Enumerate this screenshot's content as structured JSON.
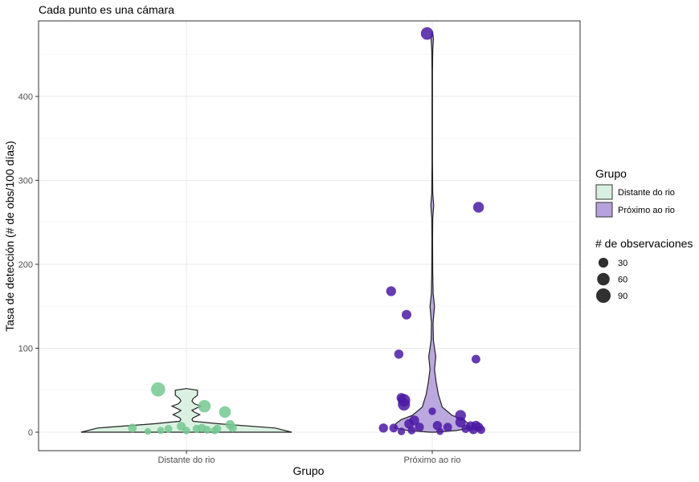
{
  "chart_data": {
    "type": "scatter",
    "title": "Cada punto es una cámara",
    "xlabel": "Grupo",
    "ylabel": "Tasa de detección (# de obs/100 días)",
    "categories": [
      "Distante do rio",
      "Próximo ao rio"
    ],
    "ylim": [
      -22,
      490
    ],
    "yticks": [
      0,
      100,
      200,
      300,
      400
    ],
    "grid": true,
    "legend_position": "right",
    "colors": {
      "Distante do rio": {
        "point": "#74c892",
        "fill": "#d8f0df"
      },
      "Próximo ao rio": {
        "point": "#4b1aa3",
        "fill": "#b7a3dc"
      }
    },
    "legend": {
      "fill_title": "Grupo",
      "fill_items": [
        "Distante do rio",
        "Próximo ao rio"
      ],
      "size_title": "# de observaciones",
      "size_items": [
        30,
        60,
        90
      ]
    },
    "violins": [
      {
        "group": "Distante do rio",
        "profile": [
          [
            0,
            0.95
          ],
          [
            5,
            0.8
          ],
          [
            10,
            0.3
          ],
          [
            13,
            0.06
          ],
          [
            15,
            0.05
          ],
          [
            17,
            0.06
          ],
          [
            21,
            0.12
          ],
          [
            24,
            0.07
          ],
          [
            26,
            0.05
          ],
          [
            28,
            0.08
          ],
          [
            31,
            0.13
          ],
          [
            34,
            0.07
          ],
          [
            37,
            0.05
          ],
          [
            40,
            0.06
          ],
          [
            44,
            0.1
          ],
          [
            47,
            0.1
          ],
          [
            50,
            0.1
          ],
          [
            52,
            0
          ]
        ]
      },
      {
        "group": "Próximo ao rio",
        "profile": [
          [
            0,
            0.02
          ],
          [
            2,
            0.22
          ],
          [
            5,
            0.34
          ],
          [
            10,
            0.33
          ],
          [
            15,
            0.28
          ],
          [
            20,
            0.18
          ],
          [
            30,
            0.09
          ],
          [
            45,
            0.055
          ],
          [
            60,
            0.035
          ],
          [
            75,
            0.02
          ],
          [
            90,
            0.032
          ],
          [
            100,
            0.02
          ],
          [
            110,
            0.01
          ],
          [
            130,
            0.007
          ],
          [
            150,
            0.02
          ],
          [
            165,
            0.008
          ],
          [
            190,
            0.004
          ],
          [
            230,
            0.003
          ],
          [
            255,
            0.004
          ],
          [
            270,
            0.013
          ],
          [
            285,
            0.004
          ],
          [
            320,
            0.002
          ],
          [
            380,
            0.002
          ],
          [
            430,
            0.002
          ],
          [
            455,
            0.004
          ],
          [
            468,
            0.01
          ],
          [
            473,
            0.007
          ],
          [
            476,
            0
          ]
        ]
      }
    ],
    "points": [
      {
        "group": "Distante do rio",
        "jitter": -0.21,
        "y": 5,
        "n": 20
      },
      {
        "group": "Distante do rio",
        "jitter": -0.15,
        "y": 1,
        "n": 8
      },
      {
        "group": "Distante do rio",
        "jitter": -0.11,
        "y": 51,
        "n": 85
      },
      {
        "group": "Distante do rio",
        "jitter": -0.1,
        "y": 2,
        "n": 10
      },
      {
        "group": "Distante do rio",
        "jitter": -0.07,
        "y": 4,
        "n": 14
      },
      {
        "group": "Distante do rio",
        "jitter": -0.02,
        "y": 7,
        "n": 22
      },
      {
        "group": "Distante do rio",
        "jitter": 0.0,
        "y": 2,
        "n": 12
      },
      {
        "group": "Distante do rio",
        "jitter": 0.04,
        "y": 4,
        "n": 16
      },
      {
        "group": "Distante do rio",
        "jitter": 0.06,
        "y": 5,
        "n": 18
      },
      {
        "group": "Distante do rio",
        "jitter": 0.07,
        "y": 31,
        "n": 60
      },
      {
        "group": "Distante do rio",
        "jitter": 0.08,
        "y": 3,
        "n": 14
      },
      {
        "group": "Distante do rio",
        "jitter": 0.11,
        "y": 2,
        "n": 12
      },
      {
        "group": "Distante do rio",
        "jitter": 0.12,
        "y": 4,
        "n": 16
      },
      {
        "group": "Distante do rio",
        "jitter": 0.15,
        "y": 24,
        "n": 50
      },
      {
        "group": "Distante do rio",
        "jitter": 0.17,
        "y": 9,
        "n": 24
      },
      {
        "group": "Distante do rio",
        "jitter": 0.18,
        "y": 5,
        "n": 18
      },
      {
        "group": "Próximo ao rio",
        "jitter": -0.02,
        "y": 475,
        "n": 60
      },
      {
        "group": "Próximo ao rio",
        "jitter": 0.18,
        "y": 268,
        "n": 40
      },
      {
        "group": "Próximo ao rio",
        "jitter": -0.16,
        "y": 168,
        "n": 30
      },
      {
        "group": "Próximo ao rio",
        "jitter": -0.1,
        "y": 140,
        "n": 28
      },
      {
        "group": "Próximo ao rio",
        "jitter": -0.13,
        "y": 93,
        "n": 24
      },
      {
        "group": "Próximo ao rio",
        "jitter": 0.17,
        "y": 87,
        "n": 20
      },
      {
        "group": "Próximo ao rio",
        "jitter": -0.12,
        "y": 41,
        "n": 28
      },
      {
        "group": "Próximo ao rio",
        "jitter": -0.11,
        "y": 38,
        "n": 60
      },
      {
        "group": "Próximo ao rio",
        "jitter": -0.11,
        "y": 33,
        "n": 55
      },
      {
        "group": "Próximo ao rio",
        "jitter": 0.0,
        "y": 25,
        "n": 12
      },
      {
        "group": "Próximo ao rio",
        "jitter": 0.11,
        "y": 20,
        "n": 40
      },
      {
        "group": "Próximo ao rio",
        "jitter": 0.11,
        "y": 12,
        "n": 35
      },
      {
        "group": "Próximo ao rio",
        "jitter": -0.07,
        "y": 14,
        "n": 30
      },
      {
        "group": "Próximo ao rio",
        "jitter": -0.09,
        "y": 10,
        "n": 28
      },
      {
        "group": "Próximo ao rio",
        "jitter": -0.05,
        "y": 6,
        "n": 22
      },
      {
        "group": "Próximo ao rio",
        "jitter": 0.02,
        "y": 8,
        "n": 24
      },
      {
        "group": "Próximo ao rio",
        "jitter": 0.06,
        "y": 6,
        "n": 20
      },
      {
        "group": "Próximo ao rio",
        "jitter": -0.19,
        "y": 5,
        "n": 24
      },
      {
        "group": "Próximo ao rio",
        "jitter": -0.15,
        "y": 5,
        "n": 20
      },
      {
        "group": "Próximo ao rio",
        "jitter": -0.12,
        "y": 1,
        "n": 12
      },
      {
        "group": "Próximo ao rio",
        "jitter": -0.08,
        "y": 2,
        "n": 14
      },
      {
        "group": "Próximo ao rio",
        "jitter": 0.03,
        "y": 1,
        "n": 10
      },
      {
        "group": "Próximo ao rio",
        "jitter": 0.13,
        "y": 4,
        "n": 18
      },
      {
        "group": "Próximo ao rio",
        "jitter": 0.15,
        "y": 7,
        "n": 30
      },
      {
        "group": "Próximo ao rio",
        "jitter": 0.16,
        "y": 3,
        "n": 22
      },
      {
        "group": "Próximo ao rio",
        "jitter": 0.17,
        "y": 8,
        "n": 26
      },
      {
        "group": "Próximo ao rio",
        "jitter": 0.18,
        "y": 6,
        "n": 24
      },
      {
        "group": "Próximo ao rio",
        "jitter": 0.19,
        "y": 3,
        "n": 18
      }
    ]
  }
}
